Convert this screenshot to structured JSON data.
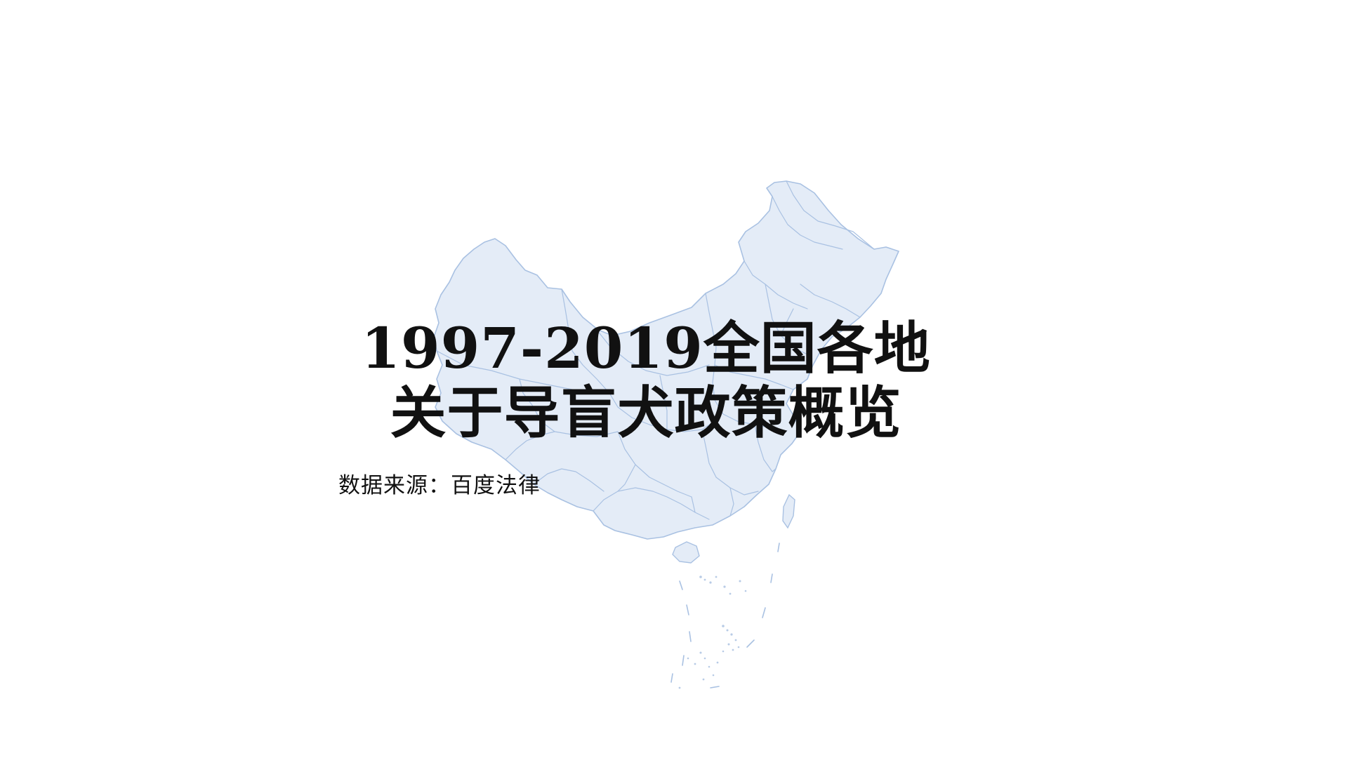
{
  "slide": {
    "title_line1": "1997-2019全国各地",
    "title_line2": "关于导盲犬政策概览",
    "source": "数据来源：百度法律"
  },
  "map": {
    "region": "China",
    "fill_color": "#e4ecf7",
    "border_color": "#a9c1e2"
  }
}
